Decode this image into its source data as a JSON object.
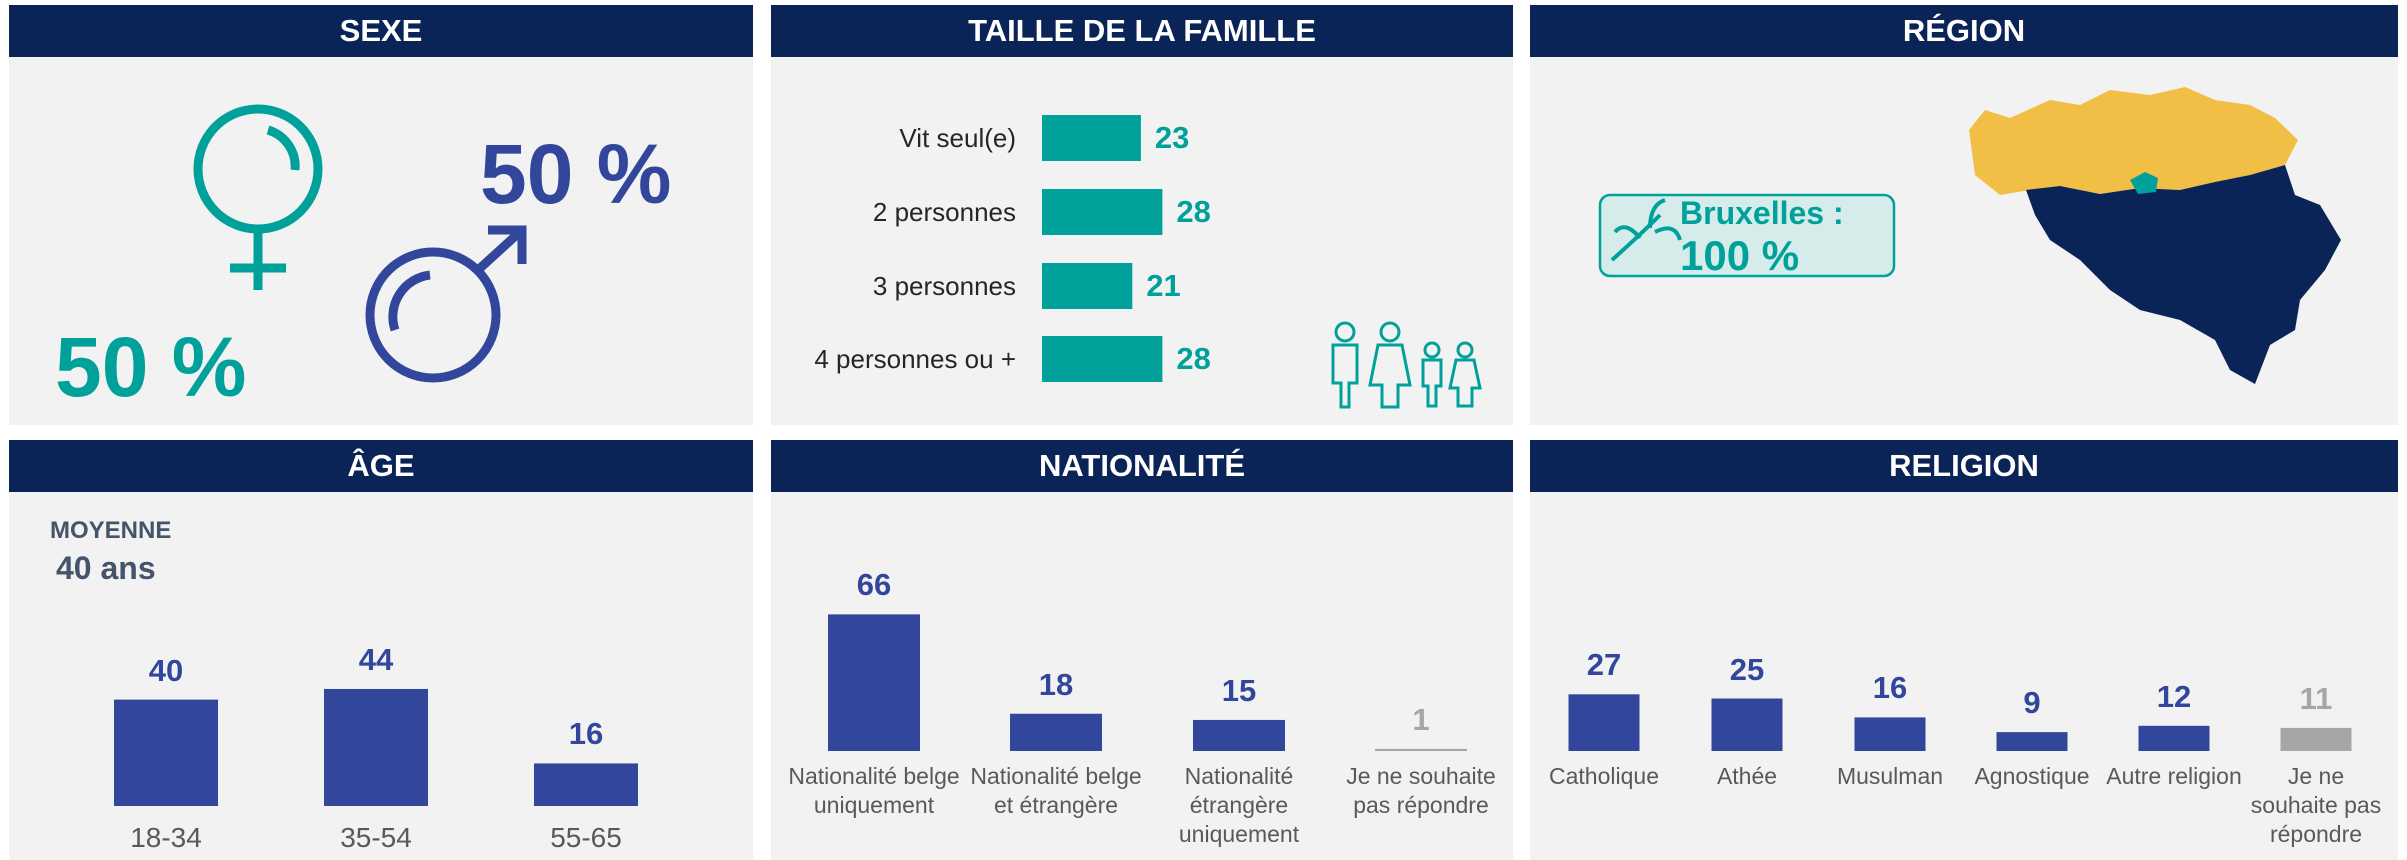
{
  "sexe": {
    "title": "SEXE",
    "female": "50 %",
    "male": "50 %"
  },
  "region": {
    "title": "RÉGION",
    "label": "Bruxelles :",
    "value": "100 %"
  },
  "chart_data": [
    {
      "type": "hbar",
      "title": "TAILLE DE LA FAMILLE",
      "categories": [
        "Vit seul(e)",
        "2 personnes",
        "3 personnes",
        "4 personnes ou +"
      ],
      "values": [
        23,
        28,
        21,
        28
      ],
      "color": "#00a19a"
    },
    {
      "type": "bar",
      "title": "ÂGE",
      "annotations": [
        "MOYENNE",
        "40 ans"
      ],
      "categories": [
        "18-34",
        "35-54",
        "55-65"
      ],
      "values": [
        40,
        44,
        16
      ],
      "color": "#32479c"
    },
    {
      "type": "bar",
      "title": "NATIONALITÉ",
      "categories": [
        "Nationalité belge uniquement",
        "Nationalité belge et étrangère",
        "Nationalité étrangère uniquement",
        "Je ne souhaite pas répondre"
      ],
      "values": [
        66,
        18,
        15,
        1
      ],
      "colors": [
        "#32479c",
        "#32479c",
        "#32479c",
        "#a6a6a6"
      ]
    },
    {
      "type": "bar",
      "title": "RELIGION",
      "categories": [
        "Catholique",
        "Athée",
        "Musulman",
        "Agnostique",
        "Autre religion",
        "Je ne souhaite pas répondre"
      ],
      "values": [
        27,
        25,
        16,
        9,
        12,
        11
      ],
      "colors": [
        "#32479c",
        "#32479c",
        "#32479c",
        "#32479c",
        "#32479c",
        "#a6a6a6"
      ]
    }
  ]
}
